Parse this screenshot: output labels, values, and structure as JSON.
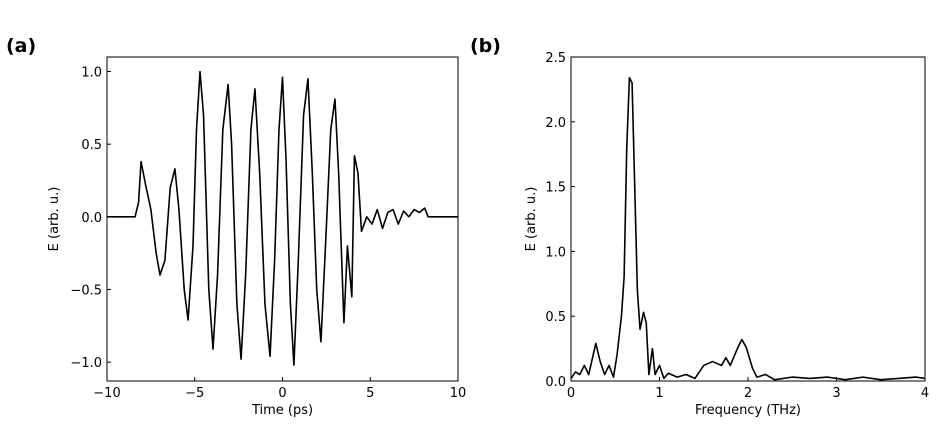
{
  "chart_data": [
    {
      "type": "line",
      "label": "(a)",
      "xlabel": "Time (ps)",
      "ylabel": "E (arb. u.)",
      "color": "#000000",
      "xlim": [
        -10,
        10
      ],
      "ylim": [
        -1.13,
        1.1
      ],
      "xticks": [
        {
          "value": -10,
          "label": "−10"
        },
        {
          "value": -5,
          "label": "−5"
        },
        0,
        5,
        10
      ],
      "yticks": [
        {
          "value": -1,
          "label": "−1.0"
        },
        {
          "value": -0.5,
          "label": "−0.5"
        },
        {
          "value": 0,
          "label": "0.0"
        },
        {
          "value": 0.5,
          "label": "0.5"
        },
        {
          "value": 1,
          "label": "1.0"
        }
      ],
      "x": [
        -10,
        -8.4,
        -8.2,
        -8.06,
        -7.8,
        -7.5,
        -7.2,
        -6.98,
        -6.7,
        -6.4,
        -6.13,
        -5.9,
        -5.6,
        -5.38,
        -5.1,
        -4.9,
        -4.7,
        -4.5,
        -4.2,
        -3.96,
        -3.7,
        -3.4,
        -3.1,
        -2.9,
        -2.6,
        -2.36,
        -2.1,
        -1.8,
        -1.57,
        -1.3,
        -1.0,
        -0.71,
        -0.45,
        -0.2,
        0.0,
        0.2,
        0.45,
        0.65,
        0.9,
        1.2,
        1.45,
        1.7,
        1.95,
        2.19,
        2.45,
        2.75,
        2.99,
        3.2,
        3.5,
        3.7,
        3.95,
        4.1,
        4.3,
        4.5,
        4.8,
        5.1,
        5.4,
        5.7,
        6.0,
        6.3,
        6.6,
        6.9,
        7.2,
        7.5,
        7.8,
        8.1,
        8.3,
        10
      ],
      "values": [
        0,
        0,
        0.1,
        0.38,
        0.22,
        0.05,
        -0.25,
        -0.4,
        -0.3,
        0.2,
        0.33,
        0.05,
        -0.5,
        -0.71,
        -0.2,
        0.6,
        1.0,
        0.7,
        -0.5,
        -0.91,
        -0.4,
        0.6,
        0.91,
        0.5,
        -0.6,
        -0.98,
        -0.4,
        0.6,
        0.88,
        0.3,
        -0.6,
        -0.96,
        -0.3,
        0.6,
        0.96,
        0.4,
        -0.6,
        -1.02,
        -0.3,
        0.7,
        0.95,
        0.3,
        -0.5,
        -0.86,
        -0.2,
        0.6,
        0.81,
        0.3,
        -0.73,
        -0.2,
        -0.55,
        0.42,
        0.3,
        -0.1,
        0.0,
        -0.05,
        0.05,
        -0.08,
        0.03,
        0.05,
        -0.05,
        0.04,
        0.0,
        0.05,
        0.03,
        0.06,
        0,
        0
      ]
    },
    {
      "type": "line",
      "label": "(b)",
      "xlabel": "Frequency (THz)",
      "ylabel": "E (arb. u.)",
      "color": "#000000",
      "xlim": [
        0,
        4
      ],
      "ylim": [
        0,
        2.5
      ],
      "xticks": [
        0,
        1,
        2,
        3,
        4
      ],
      "yticks": [
        {
          "value": 0,
          "label": "0.0"
        },
        {
          "value": 0.5,
          "label": "0.5"
        },
        {
          "value": 1,
          "label": "1.0"
        },
        {
          "value": 1.5,
          "label": "1.5"
        },
        {
          "value": 2,
          "label": "2.0"
        },
        {
          "value": 2.5,
          "label": "2.5"
        }
      ],
      "x": [
        0,
        0.05,
        0.1,
        0.15,
        0.2,
        0.28,
        0.33,
        0.38,
        0.43,
        0.48,
        0.52,
        0.57,
        0.6,
        0.63,
        0.66,
        0.69,
        0.72,
        0.75,
        0.78,
        0.82,
        0.85,
        0.88,
        0.92,
        0.95,
        1.0,
        1.05,
        1.1,
        1.2,
        1.3,
        1.4,
        1.5,
        1.6,
        1.7,
        1.75,
        1.8,
        1.88,
        1.93,
        1.98,
        2.05,
        2.1,
        2.2,
        2.3,
        2.5,
        2.7,
        2.9,
        3.1,
        3.3,
        3.5,
        3.7,
        3.9,
        4.0
      ],
      "values": [
        0.02,
        0.07,
        0.05,
        0.12,
        0.05,
        0.29,
        0.15,
        0.05,
        0.12,
        0.03,
        0.2,
        0.5,
        0.8,
        1.8,
        2.34,
        2.3,
        1.5,
        0.7,
        0.4,
        0.53,
        0.45,
        0.05,
        0.25,
        0.05,
        0.12,
        0.02,
        0.06,
        0.03,
        0.05,
        0.02,
        0.12,
        0.15,
        0.12,
        0.18,
        0.12,
        0.25,
        0.32,
        0.26,
        0.1,
        0.03,
        0.05,
        0.01,
        0.03,
        0.02,
        0.03,
        0.01,
        0.03,
        0.01,
        0.02,
        0.03,
        0.02
      ]
    }
  ]
}
